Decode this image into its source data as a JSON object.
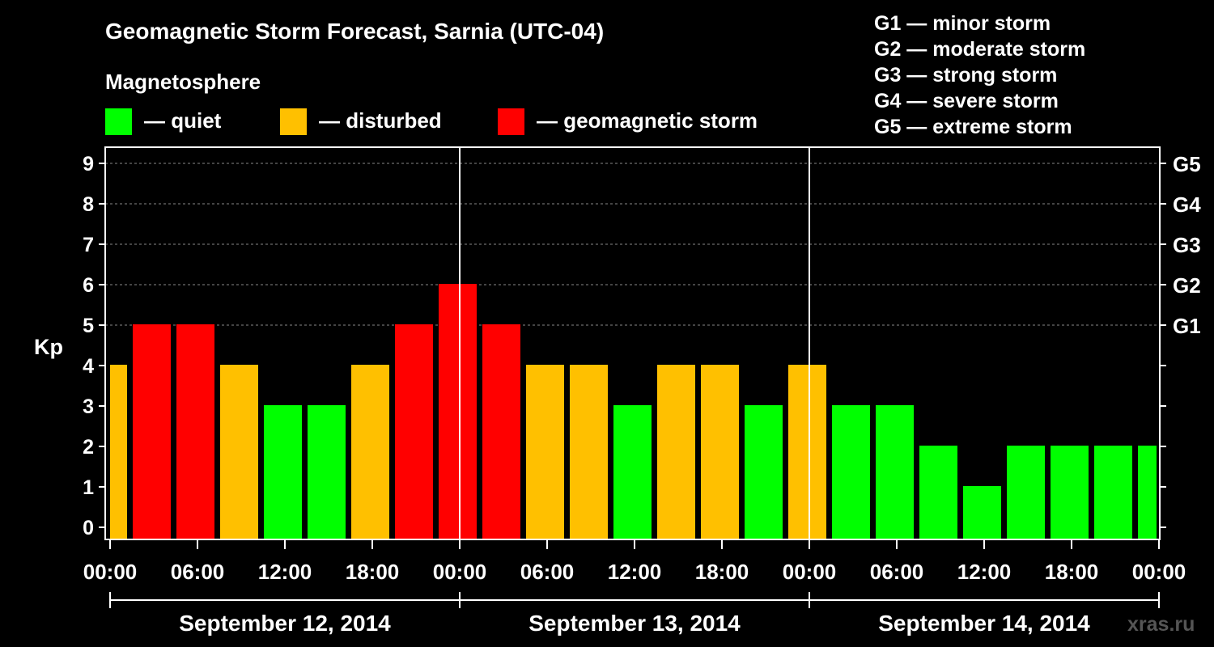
{
  "chart_data": {
    "type": "bar",
    "title": "Geomagnetic Storm Forecast, Sarnia (UTC-04)",
    "ylabel": "Kp",
    "ylim": [
      0,
      9
    ],
    "yticks": [
      "0",
      "1",
      "2",
      "3",
      "4",
      "5",
      "6",
      "7",
      "8",
      "9"
    ],
    "right_axis": [
      {
        "kp": 5,
        "label": "G1"
      },
      {
        "kp": 6,
        "label": "G2"
      },
      {
        "kp": 7,
        "label": "G3"
      },
      {
        "kp": 8,
        "label": "G4"
      },
      {
        "kp": 9,
        "label": "G5"
      }
    ],
    "storm_scale": [
      "G1 — minor storm",
      "G2 — moderate storm",
      "G3 — strong storm",
      "G4 — severe storm",
      "G5 — extreme storm"
    ],
    "legend": {
      "title": "Magnetosphere",
      "items": [
        {
          "label": "— quiet",
          "color": "#00ff00"
        },
        {
          "label": "— disturbed",
          "color": "#ffc000"
        },
        {
          "label": "— geomagnetic storm",
          "color": "#ff0000"
        }
      ]
    },
    "x_range_hours": [
      -1.5,
      72
    ],
    "x_tick_labels": [
      "00:00",
      "06:00",
      "12:00",
      "18:00",
      "00:00",
      "06:00",
      "12:00",
      "18:00",
      "00:00",
      "06:00",
      "12:00",
      "18:00",
      "00:00"
    ],
    "x_tick_hours": [
      0,
      6,
      12,
      18,
      24,
      30,
      36,
      42,
      48,
      54,
      60,
      66,
      72
    ],
    "day_separators_hours": [
      24,
      48
    ],
    "days": [
      {
        "label": "September 12, 2014",
        "start_hour": 0,
        "end_hour": 24
      },
      {
        "label": "September 13, 2014",
        "start_hour": 24,
        "end_hour": 48
      },
      {
        "label": "September 14, 2014",
        "start_hour": 48,
        "end_hour": 72
      }
    ],
    "bar_start_hours": [
      -1.5,
      1.5,
      4.5,
      7.5,
      10.5,
      13.5,
      16.5,
      19.5,
      22.5,
      25.5,
      28.5,
      31.5,
      34.5,
      37.5,
      40.5,
      43.5,
      46.5,
      49.5,
      52.5,
      55.5,
      58.5,
      61.5,
      64.5,
      67.5,
      70.5
    ],
    "bar_width_hours": 3,
    "values": [
      4,
      5,
      5,
      4,
      3,
      3,
      4,
      5,
      6,
      5,
      4,
      4,
      3,
      4,
      4,
      3,
      4,
      3,
      3,
      2,
      1,
      2,
      2,
      2,
      2
    ],
    "thresholds": {
      "quiet_max": 3,
      "disturbed_max": 4
    },
    "watermark": "xras.ru"
  }
}
